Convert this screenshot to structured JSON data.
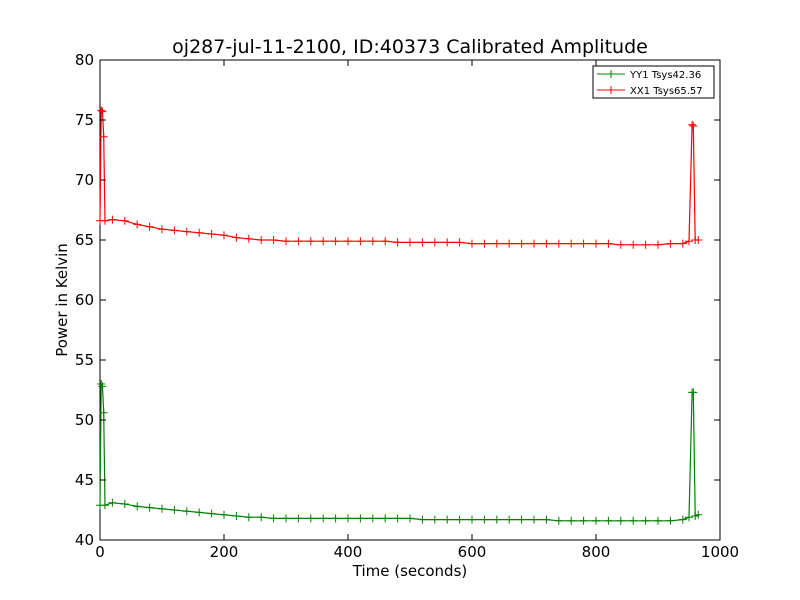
{
  "chart_data": {
    "type": "line",
    "title": "oj287-jul-11-2100, ID:40373 Calibrated Amplitude",
    "xlabel": "Time (seconds)",
    "ylabel": "Power in Kelvin",
    "xlim": [
      0,
      1000
    ],
    "ylim": [
      40,
      80
    ],
    "xticks": [
      0,
      200,
      400,
      600,
      800,
      1000
    ],
    "yticks": [
      40,
      45,
      50,
      55,
      60,
      65,
      70,
      75,
      80
    ],
    "grid": false,
    "legend_position": "top-right",
    "series": [
      {
        "name": "YY1 Tsys42.36",
        "color": "#008000",
        "marker": "plus",
        "x": [
          0,
          2,
          4,
          6,
          8,
          20,
          40,
          60,
          80,
          100,
          120,
          140,
          160,
          180,
          200,
          220,
          240,
          260,
          280,
          300,
          320,
          340,
          360,
          380,
          400,
          420,
          440,
          460,
          480,
          500,
          520,
          540,
          560,
          580,
          600,
          620,
          640,
          660,
          680,
          700,
          720,
          740,
          760,
          780,
          800,
          820,
          840,
          860,
          880,
          900,
          920,
          940,
          950,
          955,
          957,
          960,
          965
        ],
        "y": [
          42.9,
          53.0,
          52.8,
          50.6,
          42.9,
          43.1,
          43.0,
          42.8,
          42.7,
          42.6,
          42.5,
          42.4,
          42.3,
          42.2,
          42.1,
          42.0,
          41.9,
          41.9,
          41.8,
          41.8,
          41.8,
          41.8,
          41.8,
          41.8,
          41.8,
          41.8,
          41.8,
          41.8,
          41.8,
          41.8,
          41.7,
          41.7,
          41.7,
          41.7,
          41.7,
          41.7,
          41.7,
          41.7,
          41.7,
          41.7,
          41.7,
          41.6,
          41.6,
          41.6,
          41.6,
          41.6,
          41.6,
          41.6,
          41.6,
          41.6,
          41.6,
          41.7,
          41.9,
          52.3,
          52.3,
          42.0,
          42.1
        ]
      },
      {
        "name": "XX1 Tsys65.57",
        "color": "#ff0000",
        "marker": "plus",
        "x": [
          0,
          2,
          4,
          6,
          8,
          20,
          40,
          60,
          80,
          100,
          120,
          140,
          160,
          180,
          200,
          220,
          240,
          260,
          280,
          300,
          320,
          340,
          360,
          380,
          400,
          420,
          440,
          460,
          480,
          500,
          520,
          540,
          560,
          580,
          600,
          620,
          640,
          660,
          680,
          700,
          720,
          740,
          760,
          780,
          800,
          820,
          840,
          860,
          880,
          900,
          920,
          940,
          950,
          955,
          957,
          960,
          965
        ],
        "y": [
          66.6,
          75.8,
          75.7,
          73.6,
          66.6,
          66.7,
          66.6,
          66.3,
          66.1,
          65.9,
          65.8,
          65.7,
          65.6,
          65.5,
          65.4,
          65.2,
          65.1,
          65.0,
          65.0,
          64.9,
          64.9,
          64.9,
          64.9,
          64.9,
          64.9,
          64.9,
          64.9,
          64.9,
          64.8,
          64.8,
          64.8,
          64.8,
          64.8,
          64.8,
          64.7,
          64.7,
          64.7,
          64.7,
          64.7,
          64.7,
          64.7,
          64.7,
          64.7,
          64.7,
          64.7,
          64.7,
          64.6,
          64.6,
          64.6,
          64.6,
          64.7,
          64.7,
          64.9,
          74.6,
          74.5,
          65.0,
          65.0
        ]
      }
    ]
  }
}
